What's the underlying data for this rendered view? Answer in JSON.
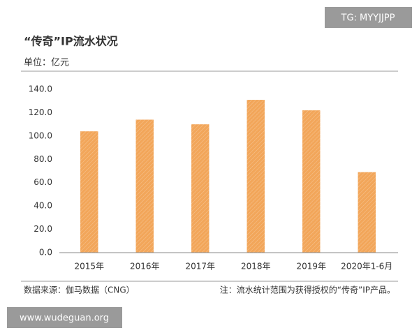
{
  "chart_data": {
    "type": "bar",
    "title": "“传奇”IP流水状况",
    "subtitle": "单位：亿元",
    "categories": [
      "2015年",
      "2016年",
      "2017年",
      "2018年",
      "2019年",
      "2020年1-6月"
    ],
    "values": [
      104,
      114,
      110,
      131,
      122,
      69
    ],
    "color": "#f2a65a",
    "ylim": [
      0,
      140
    ],
    "yticks": [
      {
        "value": 0,
        "label": "0.0"
      },
      {
        "value": 20,
        "label": "20.0"
      },
      {
        "value": 40,
        "label": "40.0"
      },
      {
        "value": 60,
        "label": "60.0"
      },
      {
        "value": 80,
        "label": "80.0"
      },
      {
        "value": 100,
        "label": "100.0"
      },
      {
        "value": 120,
        "label": "120.0"
      },
      {
        "value": 140,
        "label": "140.0"
      }
    ],
    "grid": false,
    "source": "数据来源：伽马数据（CNG）",
    "note": "注：流水统计范围为获得授权的“传奇”IP产品。"
  },
  "watermarks": [
    "TG: MYYJJPP",
    "www.wudeguan.org"
  ]
}
